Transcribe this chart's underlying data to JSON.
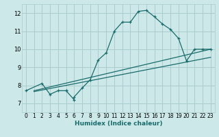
{
  "xlabel": "Humidex (Indice chaleur)",
  "bg_color": "#cce8e8",
  "grid_color": "#aacccc",
  "line_color": "#1a6b6b",
  "xlim": [
    -0.5,
    23.5
  ],
  "ylim": [
    6.5,
    12.5
  ],
  "xticks": [
    0,
    1,
    2,
    3,
    4,
    5,
    6,
    7,
    8,
    9,
    10,
    11,
    12,
    13,
    14,
    15,
    16,
    17,
    18,
    19,
    20,
    21,
    22,
    23
  ],
  "yticks": [
    7,
    8,
    9,
    10,
    11,
    12
  ],
  "line1_x": [
    0,
    2,
    3,
    4,
    5,
    5,
    6,
    6,
    7,
    8,
    9,
    10,
    11,
    12,
    13,
    14,
    15,
    16,
    17,
    18,
    19,
    20,
    21,
    22,
    23
  ],
  "line1_y": [
    7.7,
    8.1,
    7.5,
    7.7,
    7.7,
    7.7,
    7.2,
    7.35,
    7.85,
    8.3,
    9.4,
    9.8,
    11.0,
    11.5,
    11.5,
    12.1,
    12.15,
    11.8,
    11.4,
    11.1,
    10.6,
    9.35,
    10.0,
    10.0,
    10.0
  ],
  "line2_x": [
    1,
    23
  ],
  "line2_y": [
    7.7,
    10.0
  ],
  "line3_x": [
    1,
    23
  ],
  "line3_y": [
    7.65,
    9.55
  ],
  "marker": "+"
}
